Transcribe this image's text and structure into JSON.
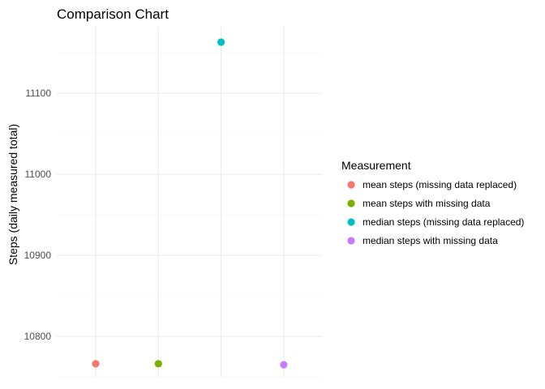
{
  "chart_data": {
    "type": "scatter",
    "title": "Comparison Chart",
    "xlabel": "",
    "ylabel": "Steps (daily measured total)",
    "x_ticks_labeled": false,
    "ylim": [
      10750,
      11175
    ],
    "yticks": [
      10800,
      10900,
      11000,
      11100
    ],
    "grid": true,
    "legend": {
      "title": "Measurement",
      "placement": "right"
    },
    "categories": [
      "mean steps (missing data replaced)",
      "mean steps with missing data",
      "median steps (missing data replaced)",
      "median steps with missing data"
    ],
    "series": [
      {
        "name": "mean steps (missing data replaced)",
        "values": [
          10766.19
        ],
        "color": "#F8766D"
      },
      {
        "name": "mean steps with missing data",
        "values": [
          10766.19
        ],
        "color": "#7CAE00"
      },
      {
        "name": "median steps (missing data replaced)",
        "values": [
          11163
        ],
        "color": "#00BFC4"
      },
      {
        "name": "median steps with missing data",
        "values": [
          10765
        ],
        "color": "#C77CFF"
      }
    ]
  }
}
